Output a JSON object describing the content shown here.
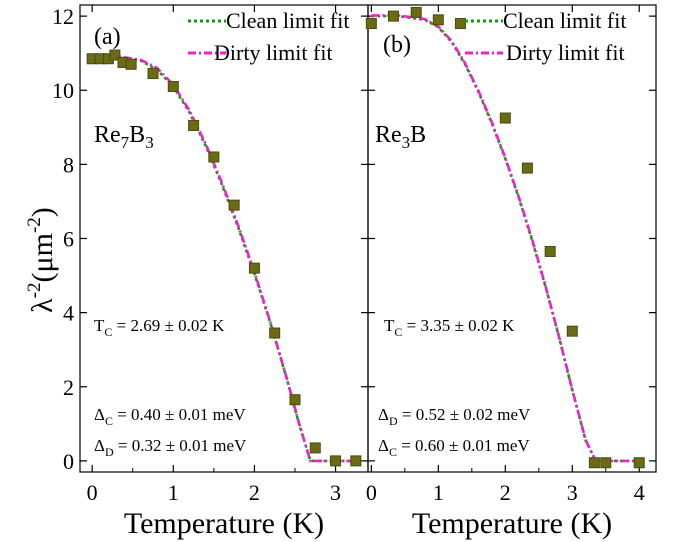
{
  "figure": {
    "ylabel": "λ⁻²(μm⁻²)",
    "ylabel_parts": {
      "lambda": "λ",
      "exp1": "-2",
      "open": "(μm",
      "exp2": "-2",
      "close": ")"
    }
  },
  "colors": {
    "clean_fit": "#119911",
    "dirty_fit": "#ee22cc",
    "marker_fill": "#6b6b14",
    "marker_edge": "#4a4a10",
    "axis": "#000000"
  },
  "chart_data": [
    {
      "type": "scatter",
      "panel_label": "(a)",
      "compound": {
        "base1": "Re",
        "sub1": "7",
        "base2": "B",
        "sub2": "3"
      },
      "xlabel": "Temperature (K)",
      "xlim": [
        -0.15,
        3.4
      ],
      "ylim": [
        -0.3,
        12.3
      ],
      "xticks": [
        0,
        1,
        2,
        3
      ],
      "yticks": [
        0,
        2,
        4,
        6,
        8,
        10,
        12
      ],
      "legend": {
        "position": "top-right",
        "entries": [
          "Clean limit fit",
          "Dirty limit fit"
        ]
      },
      "annotations": {
        "tc": {
          "sym": "T",
          "sub": "C",
          "val": " = 2.69 ± 0.02 K"
        },
        "gap1": {
          "sym": "Δ",
          "sub": "C",
          "val": " = 0.40 ± 0.01 meV"
        },
        "gap2": {
          "sym": "Δ",
          "sub": "D",
          "val": " = 0.32 ± 0.01 meV"
        }
      },
      "series": [
        {
          "name": "data",
          "x": [
            0.0,
            0.1,
            0.2,
            0.28,
            0.38,
            0.48,
            0.75,
            1.0,
            1.25,
            1.5,
            1.75,
            2.0,
            2.25,
            2.5,
            2.75,
            3.0,
            3.25
          ],
          "y": [
            10.85,
            10.85,
            10.85,
            10.95,
            10.75,
            10.7,
            10.45,
            10.1,
            9.05,
            8.2,
            6.9,
            5.2,
            3.45,
            1.65,
            0.35,
            0.0,
            0.0
          ]
        },
        {
          "name": "Clean limit fit",
          "x": [
            0.0,
            0.3,
            0.6,
            0.8,
            1.0,
            1.2,
            1.4,
            1.6,
            1.8,
            2.0,
            2.2,
            2.4,
            2.55,
            2.69,
            3.3
          ],
          "y": [
            10.92,
            10.9,
            10.8,
            10.55,
            10.1,
            9.4,
            8.5,
            7.45,
            6.3,
            5.05,
            3.7,
            2.2,
            1.0,
            0.0,
            0.0
          ]
        },
        {
          "name": "Dirty limit fit",
          "x": [
            0.0,
            0.3,
            0.6,
            0.8,
            1.0,
            1.2,
            1.4,
            1.6,
            1.8,
            2.0,
            2.2,
            2.4,
            2.55,
            2.69,
            3.3
          ],
          "y": [
            10.95,
            10.92,
            10.82,
            10.6,
            10.15,
            9.45,
            8.55,
            7.5,
            6.35,
            5.1,
            3.72,
            2.22,
            1.02,
            0.0,
            0.0
          ]
        }
      ]
    },
    {
      "type": "scatter",
      "panel_label": "(b)",
      "compound": {
        "base1": "Re",
        "sub1": "3",
        "base2": "B",
        "sub2": ""
      },
      "xlabel": "Temperature (K)",
      "xlim": [
        -0.05,
        4.25
      ],
      "ylim": [
        -0.3,
        12.3
      ],
      "xticks": [
        0,
        1,
        2,
        3,
        4
      ],
      "yticks": [
        0,
        2,
        4,
        6,
        8,
        10,
        12
      ],
      "legend": {
        "position": "top-right",
        "entries": [
          "Clean limit fit",
          "Dirty limit fit"
        ]
      },
      "annotations": {
        "tc": {
          "sym": "T",
          "sub": "C",
          "val": " = 3.35 ± 0.02 K"
        },
        "gap1": {
          "sym": "Δ",
          "sub": "D",
          "val": " = 0.52 ± 0.02 meV"
        },
        "gap2": {
          "sym": "Δ",
          "sub": "C",
          "val": " = 0.60 ± 0.01 meV"
        }
      },
      "series": [
        {
          "name": "data",
          "x": [
            0.0,
            0.33,
            0.67,
            1.0,
            1.33,
            2.0,
            2.33,
            2.67,
            3.0,
            3.33,
            3.5,
            4.0
          ],
          "y": [
            11.8,
            12.0,
            12.1,
            11.9,
            11.8,
            9.25,
            7.9,
            5.65,
            3.5,
            -0.05,
            -0.05,
            -0.05
          ]
        },
        {
          "name": "Clean limit fit",
          "x": [
            0.0,
            0.4,
            0.8,
            1.0,
            1.2,
            1.4,
            1.6,
            1.8,
            2.0,
            2.2,
            2.4,
            2.6,
            2.8,
            3.0,
            3.2,
            3.35,
            4.0
          ],
          "y": [
            12.0,
            12.0,
            11.9,
            11.7,
            11.3,
            10.7,
            9.95,
            9.1,
            8.15,
            7.1,
            5.95,
            4.7,
            3.35,
            1.9,
            0.55,
            0.0,
            0.0
          ]
        },
        {
          "name": "Dirty limit fit",
          "x": [
            0.0,
            0.4,
            0.8,
            1.0,
            1.2,
            1.4,
            1.6,
            1.8,
            2.0,
            2.2,
            2.4,
            2.6,
            2.8,
            3.0,
            3.2,
            3.35,
            4.0
          ],
          "y": [
            12.02,
            12.02,
            11.92,
            11.72,
            11.33,
            10.73,
            9.98,
            9.13,
            8.18,
            7.13,
            5.98,
            4.72,
            3.37,
            1.92,
            0.56,
            0.0,
            0.0
          ]
        }
      ]
    }
  ]
}
